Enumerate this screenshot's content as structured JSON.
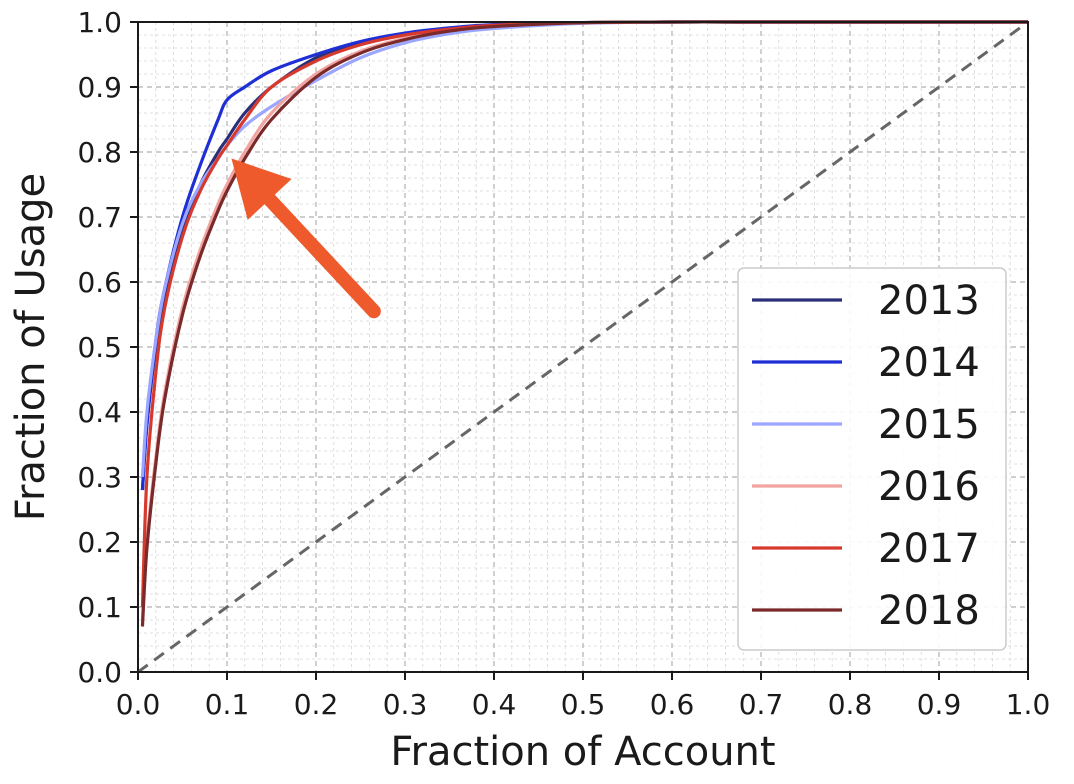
{
  "chart_data": {
    "type": "line",
    "title": "",
    "xlabel": "Fraction of Account",
    "ylabel": "Fraction of Usage",
    "xlim": [
      0.0,
      1.0
    ],
    "ylim": [
      0.0,
      1.0
    ],
    "xticks": [
      "0.0",
      "0.1",
      "0.2",
      "0.3",
      "0.4",
      "0.5",
      "0.6",
      "0.7",
      "0.8",
      "0.9",
      "1.0"
    ],
    "yticks": [
      "0.0",
      "0.1",
      "0.2",
      "0.3",
      "0.4",
      "0.5",
      "0.6",
      "0.7",
      "0.8",
      "0.9",
      "1.0"
    ],
    "grid": true,
    "minor_grid": true,
    "legend_position": "lower-right",
    "series": [
      {
        "name": "2013",
        "color": "#2b2f7a",
        "x": [
          0.005,
          0.01,
          0.02,
          0.03,
          0.05,
          0.07,
          0.09,
          0.1,
          0.12,
          0.15,
          0.2,
          0.25,
          0.3,
          0.35,
          0.4,
          0.5,
          0.6,
          0.7,
          0.8,
          0.9,
          1.0
        ],
        "y": [
          0.28,
          0.38,
          0.5,
          0.58,
          0.68,
          0.75,
          0.8,
          0.82,
          0.86,
          0.9,
          0.945,
          0.968,
          0.982,
          0.99,
          0.995,
          0.999,
          1.0,
          1.0,
          1.0,
          1.0,
          1.0
        ]
      },
      {
        "name": "2014",
        "color": "#1f2fd6",
        "x": [
          0.005,
          0.01,
          0.02,
          0.03,
          0.05,
          0.07,
          0.09,
          0.1,
          0.12,
          0.15,
          0.2,
          0.25,
          0.3,
          0.35,
          0.4,
          0.5,
          0.6,
          0.7,
          0.8,
          0.9,
          1.0
        ],
        "y": [
          0.28,
          0.38,
          0.51,
          0.59,
          0.7,
          0.78,
          0.85,
          0.88,
          0.9,
          0.925,
          0.95,
          0.97,
          0.983,
          0.991,
          0.996,
          0.999,
          1.0,
          1.0,
          1.0,
          1.0,
          1.0
        ]
      },
      {
        "name": "2015",
        "color": "#9aa6ff",
        "x": [
          0.005,
          0.01,
          0.02,
          0.03,
          0.05,
          0.07,
          0.09,
          0.1,
          0.12,
          0.15,
          0.2,
          0.25,
          0.3,
          0.35,
          0.4,
          0.5,
          0.6,
          0.7,
          0.8,
          0.9,
          1.0
        ],
        "y": [
          0.3,
          0.4,
          0.51,
          0.59,
          0.69,
          0.75,
          0.79,
          0.81,
          0.84,
          0.87,
          0.91,
          0.945,
          0.968,
          0.982,
          0.99,
          0.998,
          1.0,
          1.0,
          1.0,
          1.0,
          1.0
        ]
      },
      {
        "name": "2016",
        "color": "#f2a5a0",
        "x": [
          0.005,
          0.01,
          0.02,
          0.03,
          0.05,
          0.07,
          0.09,
          0.1,
          0.12,
          0.15,
          0.2,
          0.25,
          0.3,
          0.35,
          0.4,
          0.5,
          0.6,
          0.7,
          0.8,
          0.9,
          1.0
        ],
        "y": [
          0.08,
          0.2,
          0.33,
          0.43,
          0.56,
          0.65,
          0.72,
          0.75,
          0.8,
          0.86,
          0.92,
          0.955,
          0.975,
          0.987,
          0.994,
          0.999,
          1.0,
          1.0,
          1.0,
          1.0,
          1.0
        ]
      },
      {
        "name": "2017",
        "color": "#d63a2f",
        "x": [
          0.005,
          0.01,
          0.02,
          0.03,
          0.05,
          0.07,
          0.09,
          0.1,
          0.12,
          0.15,
          0.2,
          0.25,
          0.3,
          0.35,
          0.4,
          0.5,
          0.6,
          0.7,
          0.8,
          0.9,
          1.0
        ],
        "y": [
          0.1,
          0.3,
          0.46,
          0.56,
          0.67,
          0.74,
          0.79,
          0.81,
          0.85,
          0.9,
          0.94,
          0.965,
          0.98,
          0.989,
          0.995,
          0.999,
          1.0,
          1.0,
          1.0,
          1.0,
          1.0
        ]
      },
      {
        "name": "2018",
        "color": "#7a2a2a",
        "x": [
          0.005,
          0.01,
          0.02,
          0.03,
          0.05,
          0.07,
          0.09,
          0.1,
          0.12,
          0.15,
          0.2,
          0.25,
          0.3,
          0.35,
          0.4,
          0.5,
          0.6,
          0.7,
          0.8,
          0.9,
          1.0
        ],
        "y": [
          0.07,
          0.19,
          0.32,
          0.42,
          0.55,
          0.64,
          0.71,
          0.74,
          0.79,
          0.85,
          0.915,
          0.952,
          0.973,
          0.986,
          0.993,
          0.999,
          1.0,
          1.0,
          1.0,
          1.0,
          1.0
        ]
      }
    ],
    "reference_line": {
      "style": "dashed",
      "color": "#666666",
      "x": [
        0.0,
        1.0
      ],
      "y": [
        0.0,
        1.0
      ]
    },
    "annotation": {
      "type": "arrow",
      "color": "#ee5a2c",
      "from": [
        0.265,
        0.555
      ],
      "to": [
        0.105,
        0.79
      ]
    }
  }
}
